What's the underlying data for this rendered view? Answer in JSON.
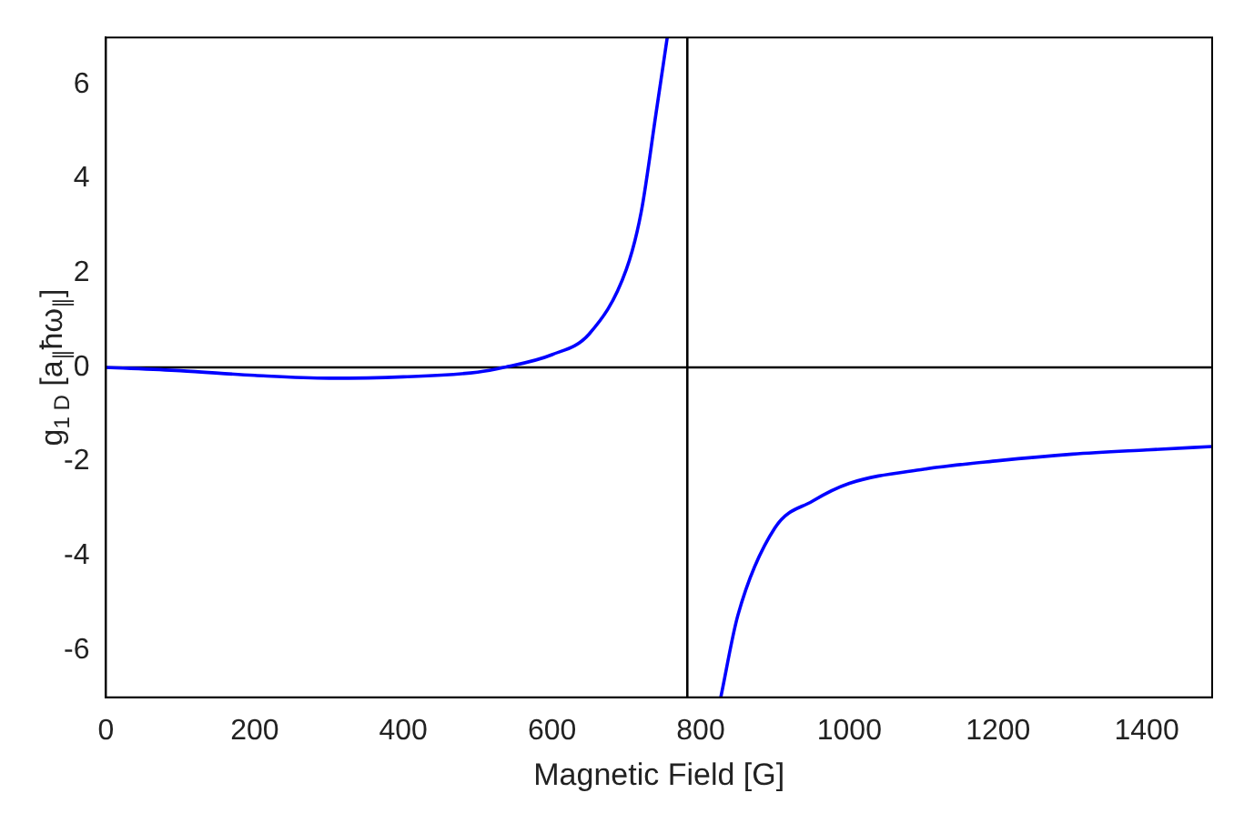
{
  "chart_data": {
    "type": "line",
    "xlabel": "Magnetic Field [G]",
    "ylabel": "g$_{1 D}$ [a$_{∥}$ħω$_{∥}$]",
    "xlim": [
      0,
      1488
    ],
    "ylim": [
      -7,
      7
    ],
    "xticks": [
      0,
      200,
      400,
      600,
      800,
      1000,
      1200,
      1400
    ],
    "yticks": [
      -6,
      -4,
      -2,
      0,
      2,
      4,
      6
    ],
    "series": [
      {
        "color": "#0000ff",
        "x": [
          0,
          100,
          200,
          300,
          400,
          500,
          535,
          600,
          650,
          700,
          720,
          740,
          755
        ],
        "values": [
          0,
          -0.07,
          -0.17,
          -0.23,
          -0.2,
          -0.1,
          0,
          0.27,
          0.71,
          2.08,
          3.3,
          5.4,
          7
        ]
      },
      {
        "color": "#0000ff",
        "x": [
          827,
          850,
          900,
          950,
          1000,
          1100,
          1200,
          1300,
          1400,
          1488
        ],
        "values": [
          -7,
          -5.26,
          -3.4,
          -2.84,
          -2.46,
          -2.16,
          -1.98,
          -1.84,
          -1.75,
          -1.68
        ]
      }
    ],
    "ref_lines": [
      {
        "axis": "x",
        "value": 782,
        "color": "#000000"
      },
      {
        "axis": "y",
        "value": 0,
        "color": "#000000"
      }
    ],
    "grid": false,
    "legend": false,
    "marker": "none",
    "line_style": "solid"
  }
}
